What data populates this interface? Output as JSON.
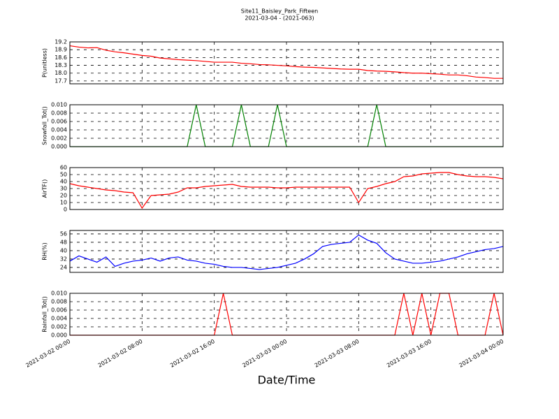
{
  "chart_data": [
    {
      "type": "line",
      "title": "Site11_Baisley_Park_Fifteen",
      "subtitle": "2021-03-04 - (2021-063)",
      "ylabel": "P(unitless)",
      "color": "#ff0000",
      "grid": true,
      "xlim": [
        "2021-03-02 00:00",
        "2021-03-04 00:00"
      ],
      "xticks": [
        "2021-03-02 00:00",
        "2021-03-02 08:00",
        "2021-03-02 16:00",
        "2021-03-03 00:00",
        "2021-03-03 08:00",
        "2021-03-03 16:00",
        "2021-03-04 00:00"
      ],
      "ylim": [
        17.59,
        19.2
      ],
      "yticks": [
        17.7,
        {
          "value": 18,
          "label": "18.0"
        },
        18.3,
        18.6,
        18.9,
        19.2
      ],
      "x": [
        "2021-03-02 00:00",
        "2021-03-02 01:00",
        "2021-03-02 02:00",
        "2021-03-02 03:00",
        "2021-03-02 04:00",
        "2021-03-02 05:00",
        "2021-03-02 06:00",
        "2021-03-02 07:00",
        "2021-03-02 08:00",
        "2021-03-02 09:00",
        "2021-03-02 10:00",
        "2021-03-02 11:00",
        "2021-03-02 12:00",
        "2021-03-02 13:00",
        "2021-03-02 14:00",
        "2021-03-02 15:00",
        "2021-03-02 16:00",
        "2021-03-02 17:00",
        "2021-03-02 18:00",
        "2021-03-02 19:00",
        "2021-03-02 20:00",
        "2021-03-02 21:00",
        "2021-03-02 22:00",
        "2021-03-02 23:00",
        "2021-03-03 00:00",
        "2021-03-03 01:00",
        "2021-03-03 02:00",
        "2021-03-03 03:00",
        "2021-03-03 04:00",
        "2021-03-03 05:00",
        "2021-03-03 06:00",
        "2021-03-03 07:00",
        "2021-03-03 08:00",
        "2021-03-03 09:00",
        "2021-03-03 10:00",
        "2021-03-03 11:00",
        "2021-03-03 12:00",
        "2021-03-03 13:00",
        "2021-03-03 14:00",
        "2021-03-03 15:00",
        "2021-03-03 16:00",
        "2021-03-03 17:00",
        "2021-03-03 18:00",
        "2021-03-03 19:00",
        "2021-03-03 20:00",
        "2021-03-03 21:00",
        "2021-03-03 22:00",
        "2021-03-03 23:00",
        "2021-03-04 00:00"
      ],
      "values": [
        19.05,
        19.0,
        18.97,
        18.98,
        18.88,
        18.82,
        18.78,
        18.73,
        18.68,
        18.65,
        18.58,
        18.55,
        18.52,
        18.5,
        18.48,
        18.45,
        18.42,
        18.42,
        18.42,
        18.38,
        18.36,
        18.33,
        18.32,
        18.3,
        18.28,
        18.25,
        18.23,
        18.22,
        18.2,
        18.18,
        18.16,
        18.15,
        18.15,
        18.1,
        18.08,
        18.07,
        18.05,
        18.02,
        18.0,
        18.0,
        17.98,
        17.96,
        17.93,
        17.93,
        17.9,
        17.85,
        17.83,
        17.8,
        17.8
      ]
    },
    {
      "type": "line",
      "ylabel": "Snowfall_Tot()",
      "color": "#008000",
      "grid": true,
      "xlim": [
        "2021-03-02 00:00",
        "2021-03-04 00:00"
      ],
      "xticks": [
        "2021-03-02 00:00",
        "2021-03-02 08:00",
        "2021-03-02 16:00",
        "2021-03-03 00:00",
        "2021-03-03 08:00",
        "2021-03-03 16:00",
        "2021-03-04 00:00"
      ],
      "ylim": [
        0,
        0.01
      ],
      "yticks": [
        {
          "value": 0,
          "label": "0.000"
        },
        {
          "value": 0.002,
          "label": "0.002"
        },
        {
          "value": 0.004,
          "label": "0.004"
        },
        {
          "value": 0.006,
          "label": "0.006"
        },
        {
          "value": 0.008,
          "label": "0.008"
        },
        {
          "value": 0.01,
          "label": "0.010"
        }
      ],
      "x": [
        "2021-03-02 00:00",
        "2021-03-02 01:00",
        "2021-03-02 02:00",
        "2021-03-02 03:00",
        "2021-03-02 04:00",
        "2021-03-02 05:00",
        "2021-03-02 06:00",
        "2021-03-02 07:00",
        "2021-03-02 08:00",
        "2021-03-02 09:00",
        "2021-03-02 10:00",
        "2021-03-02 11:00",
        "2021-03-02 12:00",
        "2021-03-02 13:00",
        "2021-03-02 14:00",
        "2021-03-02 15:00",
        "2021-03-02 16:00",
        "2021-03-02 17:00",
        "2021-03-02 18:00",
        "2021-03-02 19:00",
        "2021-03-02 20:00",
        "2021-03-02 21:00",
        "2021-03-02 22:00",
        "2021-03-02 23:00",
        "2021-03-03 00:00",
        "2021-03-03 01:00",
        "2021-03-03 02:00",
        "2021-03-03 03:00",
        "2021-03-03 04:00",
        "2021-03-03 05:00",
        "2021-03-03 06:00",
        "2021-03-03 07:00",
        "2021-03-03 08:00",
        "2021-03-03 09:00",
        "2021-03-03 10:00",
        "2021-03-03 11:00",
        "2021-03-03 12:00",
        "2021-03-03 13:00",
        "2021-03-03 14:00",
        "2021-03-03 15:00",
        "2021-03-03 16:00",
        "2021-03-03 17:00",
        "2021-03-03 18:00",
        "2021-03-03 19:00",
        "2021-03-03 20:00",
        "2021-03-03 21:00",
        "2021-03-03 22:00",
        "2021-03-03 23:00",
        "2021-03-04 00:00"
      ],
      "values": [
        0,
        0,
        0,
        0,
        0,
        0,
        0,
        0,
        0,
        0,
        0,
        0,
        0,
        0,
        0.01,
        0,
        0,
        0,
        0,
        0.01,
        0,
        0,
        0,
        0.01,
        0,
        0,
        0,
        0,
        0,
        0,
        0,
        0,
        0,
        0,
        0.01,
        0,
        0,
        0,
        0,
        0,
        0,
        0,
        0,
        0,
        0,
        0,
        0,
        0,
        0
      ]
    },
    {
      "type": "line",
      "ylabel": "AirTF()",
      "color": "#ff0000",
      "grid": true,
      "xlim": [
        "2021-03-02 00:00",
        "2021-03-04 00:00"
      ],
      "xticks": [
        "2021-03-02 00:00",
        "2021-03-02 08:00",
        "2021-03-02 16:00",
        "2021-03-03 00:00",
        "2021-03-03 08:00",
        "2021-03-03 16:00",
        "2021-03-04 00:00"
      ],
      "ylim": [
        0,
        60
      ],
      "yticks": [
        0,
        10,
        20,
        30,
        40,
        50,
        60
      ],
      "x": [
        "2021-03-02 00:00",
        "2021-03-02 01:00",
        "2021-03-02 02:00",
        "2021-03-02 03:00",
        "2021-03-02 04:00",
        "2021-03-02 05:00",
        "2021-03-02 06:00",
        "2021-03-02 07:00",
        "2021-03-02 08:00",
        "2021-03-02 09:00",
        "2021-03-02 10:00",
        "2021-03-02 11:00",
        "2021-03-02 12:00",
        "2021-03-02 13:00",
        "2021-03-02 14:00",
        "2021-03-02 15:00",
        "2021-03-02 16:00",
        "2021-03-02 17:00",
        "2021-03-02 18:00",
        "2021-03-02 19:00",
        "2021-03-02 20:00",
        "2021-03-02 21:00",
        "2021-03-02 22:00",
        "2021-03-02 23:00",
        "2021-03-03 00:00",
        "2021-03-03 01:00",
        "2021-03-03 02:00",
        "2021-03-03 03:00",
        "2021-03-03 04:00",
        "2021-03-03 05:00",
        "2021-03-03 06:00",
        "2021-03-03 07:00",
        "2021-03-03 08:00",
        "2021-03-03 09:00",
        "2021-03-03 10:00",
        "2021-03-03 11:00",
        "2021-03-03 12:00",
        "2021-03-03 13:00",
        "2021-03-03 14:00",
        "2021-03-03 15:00",
        "2021-03-03 16:00",
        "2021-03-03 17:00",
        "2021-03-03 18:00",
        "2021-03-03 19:00",
        "2021-03-03 20:00",
        "2021-03-03 21:00",
        "2021-03-03 22:00",
        "2021-03-03 23:00",
        "2021-03-04 00:00"
      ],
      "values": [
        37,
        34,
        32,
        30,
        28,
        27,
        25,
        24,
        2,
        20,
        21,
        22,
        25,
        31,
        31,
        33,
        34,
        35,
        36,
        33,
        32,
        32,
        32,
        31,
        31,
        32,
        32,
        32,
        32,
        32,
        32,
        32,
        10,
        30,
        33,
        37,
        40,
        47,
        48,
        51,
        52,
        53,
        53,
        50,
        48,
        47,
        47,
        46,
        44
      ]
    },
    {
      "type": "line",
      "ylabel": "RH(%)",
      "color": "#0000ff",
      "grid": true,
      "xlim": [
        "2021-03-02 00:00",
        "2021-03-04 00:00"
      ],
      "xticks": [
        "2021-03-02 00:00",
        "2021-03-02 08:00",
        "2021-03-02 16:00",
        "2021-03-03 00:00",
        "2021-03-03 08:00",
        "2021-03-03 16:00",
        "2021-03-04 00:00"
      ],
      "ylim": [
        19.3,
        59.3
      ],
      "yticks": [
        24,
        32,
        40,
        48,
        56
      ],
      "x": [
        "2021-03-02 00:00",
        "2021-03-02 01:00",
        "2021-03-02 02:00",
        "2021-03-02 03:00",
        "2021-03-02 04:00",
        "2021-03-02 05:00",
        "2021-03-02 06:00",
        "2021-03-02 07:00",
        "2021-03-02 08:00",
        "2021-03-02 09:00",
        "2021-03-02 10:00",
        "2021-03-02 11:00",
        "2021-03-02 12:00",
        "2021-03-02 13:00",
        "2021-03-02 14:00",
        "2021-03-02 15:00",
        "2021-03-02 16:00",
        "2021-03-02 17:00",
        "2021-03-02 18:00",
        "2021-03-02 19:00",
        "2021-03-02 20:00",
        "2021-03-02 21:00",
        "2021-03-02 22:00",
        "2021-03-02 23:00",
        "2021-03-03 00:00",
        "2021-03-03 01:00",
        "2021-03-03 02:00",
        "2021-03-03 03:00",
        "2021-03-03 04:00",
        "2021-03-03 05:00",
        "2021-03-03 06:00",
        "2021-03-03 07:00",
        "2021-03-03 08:00",
        "2021-03-03 09:00",
        "2021-03-03 10:00",
        "2021-03-03 11:00",
        "2021-03-03 12:00",
        "2021-03-03 13:00",
        "2021-03-03 14:00",
        "2021-03-03 15:00",
        "2021-03-03 16:00",
        "2021-03-03 17:00",
        "2021-03-03 18:00",
        "2021-03-03 19:00",
        "2021-03-03 20:00",
        "2021-03-03 21:00",
        "2021-03-03 22:00",
        "2021-03-03 23:00",
        "2021-03-04 00:00"
      ],
      "values": [
        30,
        35,
        32,
        29,
        34,
        25,
        28,
        30,
        31,
        33,
        30,
        33,
        34,
        31,
        30,
        28,
        27,
        25,
        24,
        24,
        23,
        22,
        23,
        24,
        26,
        28,
        32,
        37,
        44,
        46,
        47,
        48,
        55,
        50,
        47,
        38,
        32,
        30,
        28,
        28,
        29,
        30,
        32,
        34,
        37,
        39,
        41,
        42,
        44
      ]
    },
    {
      "type": "line",
      "ylabel": "Rainfall_Tot()",
      "xlabel": "Date/Time",
      "color": "#ff0000",
      "grid": true,
      "xlim": [
        "2021-03-02 00:00",
        "2021-03-04 00:00"
      ],
      "xticks": [
        "2021-03-02 00:00",
        "2021-03-02 08:00",
        "2021-03-02 16:00",
        "2021-03-03 00:00",
        "2021-03-03 08:00",
        "2021-03-03 16:00",
        "2021-03-04 00:00"
      ],
      "ylim": [
        0,
        0.01
      ],
      "yticks": [
        {
          "value": 0,
          "label": "0.000"
        },
        {
          "value": 0.002,
          "label": "0.002"
        },
        {
          "value": 0.004,
          "label": "0.004"
        },
        {
          "value": 0.006,
          "label": "0.006"
        },
        {
          "value": 0.008,
          "label": "0.008"
        },
        {
          "value": 0.01,
          "label": "0.010"
        }
      ],
      "x": [
        "2021-03-02 00:00",
        "2021-03-02 01:00",
        "2021-03-02 02:00",
        "2021-03-02 03:00",
        "2021-03-02 04:00",
        "2021-03-02 05:00",
        "2021-03-02 06:00",
        "2021-03-02 07:00",
        "2021-03-02 08:00",
        "2021-03-02 09:00",
        "2021-03-02 10:00",
        "2021-03-02 11:00",
        "2021-03-02 12:00",
        "2021-03-02 13:00",
        "2021-03-02 14:00",
        "2021-03-02 15:00",
        "2021-03-02 16:00",
        "2021-03-02 17:00",
        "2021-03-02 18:00",
        "2021-03-02 19:00",
        "2021-03-02 20:00",
        "2021-03-02 21:00",
        "2021-03-02 22:00",
        "2021-03-02 23:00",
        "2021-03-03 00:00",
        "2021-03-03 01:00",
        "2021-03-03 02:00",
        "2021-03-03 03:00",
        "2021-03-03 04:00",
        "2021-03-03 05:00",
        "2021-03-03 06:00",
        "2021-03-03 07:00",
        "2021-03-03 08:00",
        "2021-03-03 09:00",
        "2021-03-03 10:00",
        "2021-03-03 11:00",
        "2021-03-03 12:00",
        "2021-03-03 13:00",
        "2021-03-03 14:00",
        "2021-03-03 15:00",
        "2021-03-03 16:00",
        "2021-03-03 17:00",
        "2021-03-03 18:00",
        "2021-03-03 19:00",
        "2021-03-03 20:00",
        "2021-03-03 21:00",
        "2021-03-03 22:00",
        "2021-03-03 23:00",
        "2021-03-04 00:00"
      ],
      "values": [
        0,
        0,
        0,
        0,
        0,
        0,
        0,
        0,
        0,
        0,
        0,
        0,
        0,
        0,
        0,
        0,
        0,
        0.01,
        0,
        0,
        0,
        0,
        0,
        0,
        0,
        0,
        0,
        0,
        0,
        0,
        0,
        0,
        0,
        0,
        0,
        0,
        0,
        0.01,
        0,
        0.01,
        0,
        0.01,
        0.01,
        0,
        0,
        0,
        0,
        0.01,
        0
      ]
    }
  ]
}
